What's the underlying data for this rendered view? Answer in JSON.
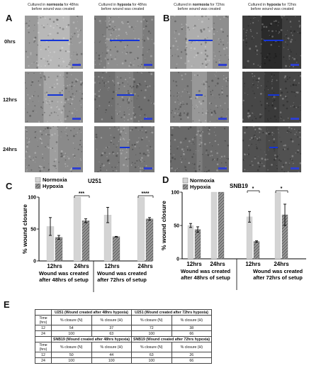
{
  "headers": {
    "a1": {
      "pre": "Cultured in ",
      "cond": "normoxia",
      "post": " for 48hrs",
      "line2": "before wound was created"
    },
    "a2": {
      "pre": "Cultured in ",
      "cond": "hypoxia",
      "post": " for 48hrs",
      "line2": "before wound was created"
    },
    "b1": {
      "pre": "Cultured in ",
      "cond": "normoxia",
      "post": " for 72hrs",
      "line2": "before wound was created"
    },
    "b2": {
      "pre": "Cultured in ",
      "cond": "hypoxia",
      "post": " for 72hrs",
      "line2": "before wound was created"
    }
  },
  "panel_labels": {
    "a": "A",
    "b": "B",
    "c": "C",
    "d": "D",
    "e": "E"
  },
  "time_labels": [
    "0hrs",
    "12hrs",
    "24hrs"
  ],
  "chart_data": [
    {
      "type": "bar",
      "title": "U251",
      "ylabel": "% wound closure",
      "ylim": [
        0,
        100
      ],
      "yticks": [
        "0",
        "50",
        "100"
      ],
      "legend": [
        "Normoxia",
        "Hypoxia"
      ],
      "legend_position": "top-left",
      "categories": [
        "12hrs",
        "24hrs",
        "12hrs",
        "24hrs"
      ],
      "groups": [
        "Wound was created after 48hrs of setup",
        "Wound was created after 72hrs of setup"
      ],
      "series": [
        {
          "name": "Normoxia",
          "values": [
            54,
            100,
            72,
            100
          ],
          "errors": [
            14,
            0,
            12,
            0
          ],
          "color": "#d4d4d4"
        },
        {
          "name": "Hypoxia",
          "values": [
            37,
            63,
            38,
            66
          ],
          "errors": [
            3,
            3,
            0.5,
            2
          ],
          "color": "#7a7a7a"
        }
      ],
      "significance": [
        {
          "category_index": 1,
          "label": "***"
        },
        {
          "category_index": 3,
          "label": "****"
        }
      ]
    },
    {
      "type": "bar",
      "title": "SNB19",
      "ylabel": "% wound closure",
      "ylim": [
        0,
        100
      ],
      "yticks": [
        "0",
        "50",
        "100"
      ],
      "legend": [
        "Normoxia",
        "Hypoxia"
      ],
      "legend_position": "top-left",
      "categories": [
        "12hrs",
        "24hrs",
        "12hrs",
        "24hrs"
      ],
      "groups": [
        "Wound was created after 48hrs of setup",
        "Wound was created after 72hrs of setup"
      ],
      "series": [
        {
          "name": "Normoxia",
          "values": [
            50,
            100,
            63,
            100
          ],
          "errors": [
            3,
            0,
            8,
            0
          ],
          "color": "#d4d4d4"
        },
        {
          "name": "Hypoxia",
          "values": [
            44,
            100,
            26,
            66
          ],
          "errors": [
            4,
            0,
            1,
            16
          ],
          "color": "#7a7a7a"
        }
      ],
      "significance": [
        {
          "category_index": 2,
          "label": "*"
        },
        {
          "category_index": 3,
          "label": "*"
        }
      ]
    }
  ],
  "table": {
    "u251_48": "U251 (Wound created after 48hrs hypoxia)",
    "u251_72": "U251 (Wound created after 72hrs hypoxia)",
    "snb19_48": "SNB19 (Wound created after 48hrs hypoxia)",
    "snb19_72": "SNB19 (Wound created after 72hrs hypoxia)",
    "time_hdr": "Time (hrs)",
    "col_n": "% closure (N)",
    "col_h": "% closure (H)",
    "u251_rows": [
      [
        "12",
        "54",
        "37",
        "72",
        "38"
      ],
      [
        "24",
        "100",
        "63",
        "100",
        "66"
      ]
    ],
    "snb19_rows": [
      [
        "12",
        "50",
        "44",
        "63",
        "26"
      ],
      [
        "24",
        "100",
        "100",
        "100",
        "66"
      ]
    ]
  }
}
